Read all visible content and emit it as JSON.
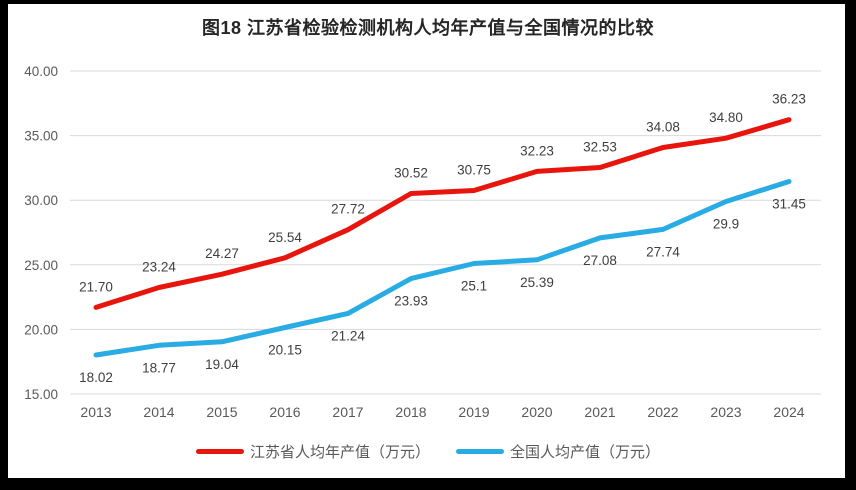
{
  "title": "图18  江苏省检验检测机构人均年产值与全国情况的比较",
  "chart_data": {
    "type": "line",
    "x": [
      2013,
      2014,
      2015,
      2016,
      2017,
      2018,
      2019,
      2020,
      2021,
      2022,
      2023,
      2024
    ],
    "series": [
      {
        "name": "江苏省人均年产值（万元）",
        "color": "#e8150d",
        "values": [
          21.7,
          23.24,
          24.27,
          25.54,
          27.72,
          30.52,
          30.75,
          32.23,
          32.53,
          34.08,
          34.8,
          36.23
        ],
        "value_labels": [
          "21.70",
          "23.24",
          "24.27",
          "25.54",
          "27.72",
          "30.52",
          "30.75",
          "32.23",
          "32.53",
          "34.08",
          "34.80",
          "36.23"
        ],
        "label_position": "above"
      },
      {
        "name": "全国人均产值（万元）",
        "color": "#29abe3",
        "values": [
          18.02,
          18.77,
          19.04,
          20.15,
          21.24,
          23.93,
          25.1,
          25.39,
          27.08,
          27.74,
          29.9,
          31.45
        ],
        "value_labels": [
          "18.02",
          "18.77",
          "19.04",
          "20.15",
          "21.24",
          "23.93",
          "25.1",
          "25.39",
          "27.08",
          "27.74",
          "29.9",
          "31.45"
        ],
        "label_position": "below"
      }
    ],
    "ylim": [
      15,
      40
    ],
    "ytick_labels": [
      "15.00",
      "20.00",
      "25.00",
      "30.00",
      "35.00",
      "40.00"
    ],
    "grid": true,
    "legend_position": "bottom"
  },
  "colors": {
    "gridline": "#d9d9d9",
    "axis_text": "#595959",
    "data_label_text": "#3f3f3f",
    "frame": "#000000",
    "background": "#ffffff"
  }
}
